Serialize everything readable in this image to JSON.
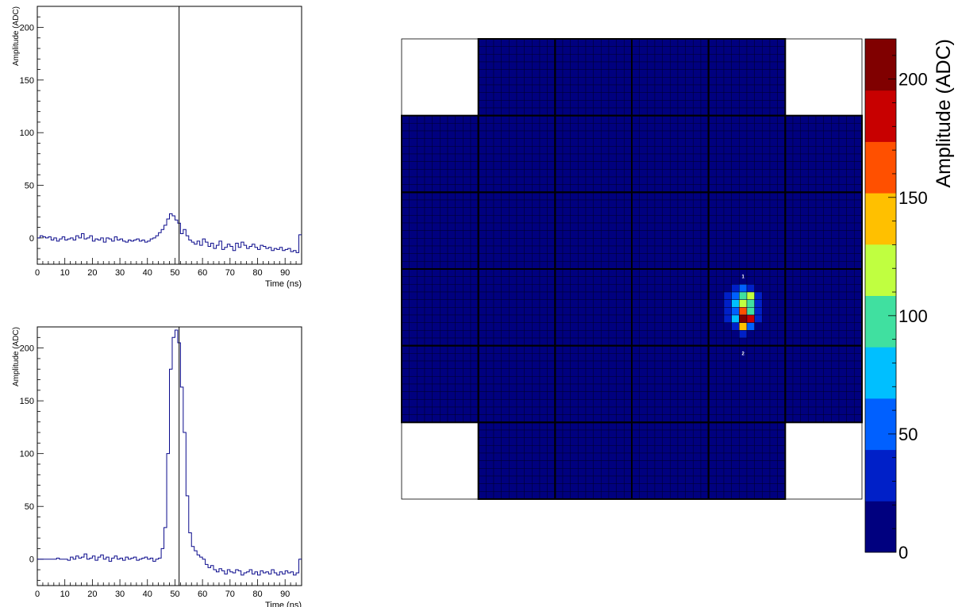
{
  "chart_data": [
    {
      "type": "line",
      "name": "waveform_channel_1",
      "xlabel": "Time (ns)",
      "ylabel": "Amplitude (ADC)",
      "xlim": [
        0,
        96
      ],
      "ylim": [
        -25,
        220
      ],
      "x_ticks": [
        0,
        10,
        20,
        30,
        40,
        50,
        60,
        70,
        80,
        90
      ],
      "y_ticks": [
        0,
        50,
        100,
        150,
        200
      ],
      "marker_line_x": 51.5,
      "x": [
        0,
        1,
        2,
        3,
        4,
        5,
        6,
        7,
        8,
        9,
        10,
        11,
        12,
        13,
        14,
        15,
        16,
        17,
        18,
        19,
        20,
        21,
        22,
        23,
        24,
        25,
        26,
        27,
        28,
        29,
        30,
        31,
        32,
        33,
        34,
        35,
        36,
        37,
        38,
        39,
        40,
        41,
        42,
        43,
        44,
        45,
        46,
        47,
        48,
        49,
        50,
        51,
        52,
        53,
        54,
        55,
        56,
        57,
        58,
        59,
        60,
        61,
        62,
        63,
        64,
        65,
        66,
        67,
        68,
        69,
        70,
        71,
        72,
        73,
        74,
        75,
        76,
        77,
        78,
        79,
        80,
        81,
        82,
        83,
        84,
        85,
        86,
        87,
        88,
        89,
        90,
        91,
        92,
        93,
        94,
        95
      ],
      "values": [
        0,
        2,
        1,
        0,
        1,
        -2,
        0,
        -3,
        -1,
        1,
        -2,
        -1,
        0,
        -2,
        2,
        0,
        4,
        -1,
        0,
        2,
        -3,
        -1,
        -2,
        0,
        -4,
        0,
        -1,
        -3,
        1,
        -2,
        -1,
        -3,
        -4,
        -2,
        -3,
        -2,
        -1,
        -3,
        -2,
        -4,
        -3,
        -1,
        0,
        2,
        5,
        8,
        12,
        18,
        23,
        21,
        17,
        14,
        4,
        8,
        2,
        -2,
        -4,
        -6,
        -3,
        -7,
        -1,
        -4,
        -8,
        -5,
        -10,
        -7,
        -3,
        -11,
        -9,
        -6,
        -8,
        -12,
        -5,
        -9,
        -4,
        -7,
        -10,
        -8,
        -6,
        -9,
        -11,
        -7,
        -8,
        -10,
        -9,
        -12,
        -10,
        -11,
        -9,
        -12,
        -11,
        -10,
        -13,
        -12,
        -14,
        3
      ]
    },
    {
      "type": "line",
      "name": "waveform_channel_2",
      "xlabel": "Time (ns)",
      "ylabel": "Amplitude (ADC)",
      "xlim": [
        0,
        96
      ],
      "ylim": [
        -25,
        220
      ],
      "x_ticks": [
        0,
        10,
        20,
        30,
        40,
        50,
        60,
        70,
        80,
        90
      ],
      "y_ticks": [
        0,
        50,
        100,
        150,
        200
      ],
      "marker_line_x": 51.5,
      "x": [
        0,
        1,
        2,
        3,
        4,
        5,
        6,
        7,
        8,
        9,
        10,
        11,
        12,
        13,
        14,
        15,
        16,
        17,
        18,
        19,
        20,
        21,
        22,
        23,
        24,
        25,
        26,
        27,
        28,
        29,
        30,
        31,
        32,
        33,
        34,
        35,
        36,
        37,
        38,
        39,
        40,
        41,
        42,
        43,
        44,
        45,
        46,
        47,
        48,
        49,
        50,
        51,
        52,
        53,
        54,
        55,
        56,
        57,
        58,
        59,
        60,
        61,
        62,
        63,
        64,
        65,
        66,
        67,
        68,
        69,
        70,
        71,
        72,
        73,
        74,
        75,
        76,
        77,
        78,
        79,
        80,
        81,
        82,
        83,
        84,
        85,
        86,
        87,
        88,
        89,
        90,
        91,
        92,
        93,
        94,
        95
      ],
      "values": [
        0,
        0,
        0,
        0,
        0,
        0,
        0,
        1,
        0,
        0,
        0,
        -1,
        2,
        0,
        3,
        1,
        2,
        5,
        0,
        1,
        3,
        -1,
        2,
        4,
        0,
        2,
        -2,
        1,
        3,
        0,
        1,
        -1,
        2,
        0,
        1,
        2,
        -1,
        0,
        1,
        2,
        0,
        1,
        -2,
        0,
        1,
        10,
        30,
        100,
        180,
        210,
        217,
        205,
        163,
        120,
        60,
        25,
        12,
        8,
        4,
        2,
        0,
        -5,
        -8,
        -6,
        -10,
        -12,
        -9,
        -11,
        -14,
        -10,
        -12,
        -13,
        -10,
        -11,
        -15,
        -13,
        -12,
        -10,
        -14,
        -12,
        -15,
        -11,
        -13,
        -12,
        -14,
        -10,
        -13,
        -15,
        -12,
        -14,
        -11,
        -13,
        -12,
        -15,
        -13,
        0
      ]
    },
    {
      "type": "heatmap",
      "name": "calorimeter_map",
      "colorbar_label": "Amplitude (ADC)",
      "colorbar_range": [
        0,
        217
      ],
      "colorbar_ticks": [
        0,
        50,
        100,
        150,
        200
      ],
      "palette": [
        "#00007f",
        "#0020c8",
        "#0060ff",
        "#00bfff",
        "#40e0a0",
        "#c0ff40",
        "#ffc000",
        "#ff5000",
        "#c80000",
        "#800000"
      ],
      "grid_size": [
        60,
        60
      ],
      "module_size": 10,
      "cell_annotations": [
        "1",
        "2"
      ],
      "hot_cells": [
        [
          44,
          22,
          8
        ],
        [
          43,
          22,
          6
        ],
        [
          45,
          22,
          6
        ],
        [
          44,
          23,
          9
        ],
        [
          43,
          23,
          10
        ],
        [
          45,
          23,
          8
        ],
        [
          44,
          24,
          12
        ],
        [
          43,
          24,
          8
        ],
        [
          45,
          24,
          12
        ],
        [
          43,
          25,
          6
        ],
        [
          44,
          25,
          6
        ],
        [
          45,
          25,
          6
        ],
        [
          46,
          25,
          5
        ],
        [
          42,
          25,
          5
        ],
        [
          41,
          26,
          4
        ],
        [
          45,
          26,
          6
        ],
        [
          44,
          26,
          10
        ],
        [
          43,
          26,
          5
        ],
        [
          43,
          27,
          5
        ],
        [
          44,
          27,
          8
        ],
        [
          45,
          27,
          6
        ],
        [
          42,
          27,
          4
        ],
        [
          46,
          27,
          4
        ],
        [
          44,
          28,
          10
        ],
        [
          43,
          28,
          7
        ],
        [
          45,
          28,
          6
        ],
        [
          44,
          29,
          14
        ],
        [
          43,
          29,
          6
        ],
        [
          45,
          29,
          8
        ],
        [
          42,
          29,
          4
        ],
        [
          35,
          29,
          5
        ],
        [
          36,
          29,
          4
        ],
        [
          44,
          30,
          6
        ],
        [
          43,
          30,
          5
        ],
        [
          45,
          30,
          5
        ],
        [
          35,
          30,
          4
        ],
        [
          44,
          31,
          12
        ],
        [
          43,
          31,
          8
        ],
        [
          45,
          31,
          9
        ],
        [
          42,
          31,
          6
        ],
        [
          46,
          31,
          7
        ],
        [
          41,
          31,
          5
        ],
        [
          47,
          31,
          4
        ],
        [
          44,
          32,
          60
        ],
        [
          43,
          32,
          35
        ],
        [
          45,
          32,
          30
        ],
        [
          42,
          32,
          15
        ],
        [
          46,
          32,
          14
        ],
        [
          41,
          32,
          8
        ],
        [
          47,
          32,
          6
        ],
        [
          40,
          32,
          4
        ],
        [
          44,
          33,
          95
        ],
        [
          43,
          33,
          55
        ],
        [
          45,
          33,
          120
        ],
        [
          42,
          33,
          22
        ],
        [
          46,
          33,
          25
        ],
        [
          41,
          33,
          12
        ],
        [
          47,
          33,
          10
        ],
        [
          39,
          33,
          6
        ],
        [
          40,
          33,
          8
        ],
        [
          44,
          34,
          130
        ],
        [
          43,
          34,
          80
        ],
        [
          45,
          34,
          100
        ],
        [
          42,
          34,
          28
        ],
        [
          46,
          34,
          30
        ],
        [
          41,
          34,
          14
        ],
        [
          47,
          34,
          12
        ],
        [
          38,
          34,
          5
        ],
        [
          40,
          34,
          8
        ],
        [
          44,
          35,
          170
        ],
        [
          43,
          35,
          65
        ],
        [
          45,
          35,
          90
        ],
        [
          42,
          35,
          30
        ],
        [
          46,
          35,
          40
        ],
        [
          41,
          35,
          14
        ],
        [
          47,
          35,
          16
        ],
        [
          40,
          35,
          6
        ],
        [
          44,
          36,
          217
        ],
        [
          43,
          36,
          75
        ],
        [
          45,
          36,
          195
        ],
        [
          42,
          36,
          25
        ],
        [
          46,
          36,
          30
        ],
        [
          41,
          36,
          10
        ],
        [
          47,
          36,
          8
        ],
        [
          39,
          36,
          6
        ],
        [
          40,
          36,
          8
        ],
        [
          44,
          37,
          140
        ],
        [
          43,
          37,
          40
        ],
        [
          45,
          37,
          55
        ],
        [
          42,
          37,
          18
        ],
        [
          46,
          37,
          20
        ],
        [
          41,
          37,
          8
        ],
        [
          47,
          37,
          6
        ],
        [
          44,
          38,
          30
        ],
        [
          43,
          38,
          18
        ],
        [
          45,
          38,
          20
        ],
        [
          42,
          38,
          8
        ],
        [
          46,
          38,
          10
        ],
        [
          40,
          38,
          6
        ],
        [
          41,
          38,
          6
        ],
        [
          39,
          38,
          5
        ],
        [
          44,
          39,
          8
        ],
        [
          43,
          39,
          6
        ],
        [
          45,
          39,
          6
        ],
        [
          48,
          29,
          6
        ],
        [
          51,
          29,
          5
        ],
        [
          21,
          12,
          4
        ],
        [
          31,
          8,
          5
        ],
        [
          33,
          25,
          4
        ],
        [
          34,
          15,
          3
        ]
      ]
    }
  ]
}
